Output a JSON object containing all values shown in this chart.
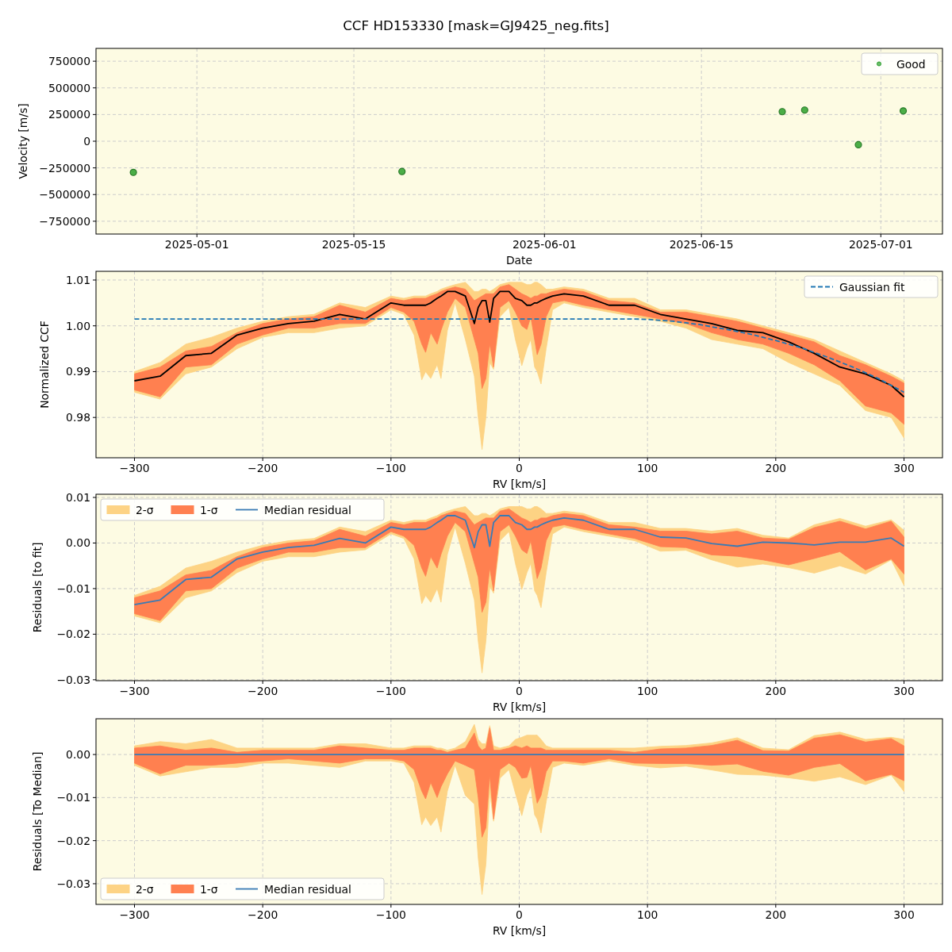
{
  "chart_data": [
    {
      "type": "scatter",
      "title": "CCF HD153330 [mask=GJ9425_neg.fits]",
      "xlabel": "Date",
      "ylabel": "Velocity [m/s]",
      "x": [
        "2025-04-25T08:00",
        "2025-05-19T07:00",
        "2025-06-22T05:00",
        "2025-06-24T05:00",
        "2025-06-29",
        "2025-07-03"
      ],
      "series": [
        {
          "name": "Good",
          "color": "#2ca02c",
          "values": [
            -292000,
            -284000,
            277000,
            292000,
            -33000,
            284000
          ]
        }
      ],
      "xlim": [
        "2025-04-22",
        "2025-07-06T12:00"
      ],
      "xticks": [
        "2025-05-01",
        "2025-05-15",
        "2025-06-01",
        "2025-06-15",
        "2025-07-01"
      ],
      "ylim": [
        -870000,
        870000
      ],
      "yticks": [
        {
          "value": -750000,
          "label": "−750000"
        },
        {
          "value": -500000,
          "label": "−500000"
        },
        {
          "value": -250000,
          "label": "−250000"
        },
        0,
        250000,
        500000,
        750000
      ],
      "grid": true,
      "legend": "top right",
      "marker": "circle"
    },
    {
      "type": "line",
      "xlabel": "RV [km/s]",
      "ylabel": "Normalized CCF",
      "x": [
        -300,
        -280,
        -260,
        -240,
        -220,
        -200,
        -180,
        -160,
        -140,
        -120,
        -100,
        -90,
        -82,
        -76,
        -73,
        -69,
        -64,
        -61,
        -56,
        -50,
        -42,
        -35,
        -32,
        -29,
        -26,
        -23,
        -20,
        -15,
        -8,
        -3,
        2,
        6,
        9,
        12,
        14,
        17,
        21,
        26,
        35,
        50,
        70,
        90,
        110,
        130,
        150,
        170,
        190,
        210,
        230,
        250,
        270,
        290,
        300
      ],
      "series": [
        {
          "color": "#fdd384",
          "values": [
            null,
            null,
            null,
            null,
            null,
            null,
            null,
            null,
            null,
            null,
            null,
            null,
            null,
            null,
            null,
            null,
            null,
            null,
            null,
            null,
            null,
            null,
            null,
            null,
            null,
            null,
            null,
            null,
            null,
            null,
            null,
            null,
            null,
            null,
            null,
            null,
            null,
            null,
            null,
            null,
            null,
            null,
            null,
            null,
            null,
            null,
            null,
            null,
            null,
            null,
            null,
            null,
            null
          ],
          "lower": [
            0.9855,
            0.984,
            0.9895,
            0.991,
            0.995,
            0.9975,
            0.9985,
            0.9985,
            0.9995,
            1.0,
            1.0035,
            1.0025,
            0.998,
            0.9882,
            0.99,
            0.9885,
            0.9915,
            0.9885,
            0.999,
            1.005,
            0.997,
            0.989,
            0.98,
            0.973,
            0.98,
            0.992,
            0.9905,
            1.002,
            1.004,
            0.997,
            0.9913,
            0.995,
            0.997,
            0.991,
            0.99,
            0.9873,
            0.995,
            1.0035,
            1.005,
            1.004,
            1.003,
            1.002,
            1.001,
            0.9995,
            0.997,
            0.996,
            0.995,
            0.992,
            0.9895,
            0.987,
            0.9815,
            0.98,
            0.9755
          ],
          "upper": [
            0.99,
            0.992,
            0.996,
            0.9975,
            0.9995,
            1.001,
            1.002,
            1.0025,
            1.005,
            1.004,
            1.0065,
            1.006,
            1.0065,
            1.0065,
            1.0065,
            1.007,
            1.0075,
            1.008,
            1.0085,
            1.009,
            1.0095,
            1.0075,
            1.0075,
            1.008,
            1.008,
            1.0075,
            1.008,
            1.009,
            1.0095,
            1.0095,
            1.0095,
            1.009,
            1.009,
            1.0095,
            1.0095,
            1.009,
            1.008,
            1.008,
            1.0085,
            1.008,
            1.006,
            1.006,
            1.0035,
            1.0035,
            1.0025,
            1.0015,
            1.0,
            0.9985,
            0.997,
            0.9945,
            0.992,
            0.9895,
            0.988
          ]
        },
        {
          "color": "#ff8050",
          "values": [
            null,
            null,
            null,
            null,
            null,
            null,
            null,
            null,
            null,
            null,
            null,
            null,
            null,
            null,
            null,
            null,
            null,
            null,
            null,
            null,
            null,
            null,
            null,
            null,
            null,
            null,
            null,
            null,
            null,
            null,
            null,
            null,
            null,
            null,
            null,
            null,
            null,
            null,
            null,
            null,
            null,
            null,
            null,
            null,
            null,
            null,
            null,
            null,
            null,
            null,
            null,
            null,
            null
          ],
          "lower": [
            0.986,
            0.9845,
            0.991,
            0.9915,
            0.996,
            0.998,
            0.9995,
            0.9995,
            1.0005,
            1.0005,
            1.004,
            1.003,
            1.001,
            0.996,
            0.9942,
            0.9985,
            0.996,
            0.999,
            1.003,
            1.006,
            1.004,
            0.997,
            0.994,
            0.9863,
            0.9885,
            0.996,
            0.991,
            1.004,
            1.0055,
            1.003,
            1.0,
            0.9992,
            1.002,
            0.997,
            0.9937,
            0.996,
            1.002,
            1.005,
            1.0055,
            1.0045,
            1.0035,
            1.0025,
            1.0015,
            1.0005,
            0.9985,
            0.997,
            0.996,
            0.994,
            0.9915,
            0.988,
            0.9825,
            0.981,
            0.9785
          ],
          "upper": [
            0.9895,
            0.991,
            0.9945,
            0.9955,
            0.9985,
            1.0005,
            1.0015,
            1.002,
            1.0045,
            1.003,
            1.006,
            1.0055,
            1.006,
            1.006,
            1.006,
            1.0065,
            1.007,
            1.0075,
            1.008,
            1.0085,
            1.008,
            1.0055,
            1.006,
            1.0065,
            1.007,
            1.007,
            1.007,
            1.0085,
            1.009,
            1.008,
            1.007,
            1.0065,
            1.006,
            1.0065,
            1.0065,
            1.007,
            1.007,
            1.0075,
            1.008,
            1.0075,
            1.0055,
            1.005,
            1.003,
            1.003,
            1.002,
            1.001,
            0.9995,
            0.998,
            0.9965,
            0.9935,
            0.9915,
            0.989,
            0.9875
          ]
        },
        {
          "type": "line",
          "color": "#000000",
          "values": [
            0.988,
            0.989,
            0.9935,
            0.994,
            0.998,
            0.9995,
            1.0005,
            1.001,
            1.0025,
            1.0015,
            1.005,
            1.0045,
            1.0045,
            1.0045,
            1.0045,
            1.005,
            1.006,
            1.0065,
            1.0075,
            1.0075,
            1.0065,
            1.0005,
            1.004,
            1.0055,
            1.0055,
            1.0008,
            1.006,
            1.0075,
            1.0075,
            1.006,
            1.0055,
            1.0045,
            1.0045,
            1.005,
            1.005,
            1.0055,
            1.006,
            1.0065,
            1.007,
            1.0065,
            1.0045,
            1.0045,
            1.0025,
            1.0015,
            1.0005,
            0.999,
            0.9985,
            0.9965,
            0.994,
            0.991,
            0.9895,
            0.987,
            0.9845
          ]
        },
        {
          "name": "Gaussian fit",
          "type": "line",
          "color": "#1f77b4",
          "line_style": "dashed",
          "x": [
            -300,
            -200,
            -100,
            0,
            90,
            100,
            120,
            140,
            160,
            180,
            200,
            220,
            240,
            260,
            280,
            300
          ],
          "values": [
            1.0015,
            1.0015,
            1.0015,
            1.0015,
            1.0015,
            1.0014,
            1.001,
            1.0003,
            0.9993,
            0.9982,
            0.9968,
            0.9952,
            0.9932,
            0.991,
            0.9885,
            0.9855
          ]
        }
      ],
      "xlim": [
        -330,
        330
      ],
      "xticks": [
        {
          "value": -300,
          "label": "−300"
        },
        {
          "value": -200,
          "label": "−200"
        },
        {
          "value": -100,
          "label": "−100"
        },
        0,
        100,
        200,
        300
      ],
      "ylim": [
        0.9712,
        1.0119
      ],
      "yticks": [
        0.98,
        0.99,
        {
          "value": 1.0,
          "label": "1.00"
        },
        1.01
      ],
      "grid": true,
      "legend": "top right"
    },
    {
      "type": "line",
      "xlabel": "RV [km/s]",
      "ylabel": "Residuals [to fit]",
      "x": [
        -300,
        -280,
        -260,
        -240,
        -220,
        -200,
        -180,
        -160,
        -140,
        -120,
        -100,
        -90,
        -82,
        -76,
        -73,
        -69,
        -64,
        -61,
        -56,
        -50,
        -42,
        -35,
        -32,
        -29,
        -26,
        -23,
        -20,
        -15,
        -8,
        -3,
        2,
        6,
        9,
        12,
        14,
        17,
        21,
        26,
        35,
        50,
        70,
        90,
        110,
        130,
        150,
        170,
        190,
        210,
        230,
        250,
        270,
        290,
        300
      ],
      "series": [
        {
          "name": "2-σ",
          "color": "#fdd384",
          "values": [
            null,
            null,
            null,
            null,
            null,
            null,
            null,
            null,
            null,
            null,
            null,
            null,
            null,
            null,
            null,
            null,
            null,
            null,
            null,
            null,
            null,
            null,
            null,
            null,
            null,
            null,
            null,
            null,
            null,
            null,
            null,
            null,
            null,
            null,
            null,
            null,
            null,
            null,
            null,
            null,
            null,
            null,
            null,
            null,
            null,
            null,
            null,
            null,
            null,
            null,
            null,
            null,
            null
          ],
          "lower": [
            -0.016,
            -0.0175,
            -0.012,
            -0.0105,
            -0.0065,
            -0.004,
            -0.003,
            -0.003,
            -0.002,
            -0.0015,
            0.002,
            0.001,
            -0.0035,
            -0.0133,
            -0.0115,
            -0.013,
            -0.01,
            -0.013,
            -0.0025,
            0.0035,
            -0.0045,
            -0.0125,
            -0.0215,
            -0.0285,
            -0.0215,
            -0.0095,
            -0.011,
            0.0005,
            0.0025,
            -0.0045,
            -0.0102,
            -0.0065,
            -0.0045,
            -0.0105,
            -0.0115,
            -0.0142,
            -0.0065,
            0.002,
            0.0035,
            0.0025,
            0.0015,
            0.0005,
            -0.0018,
            -0.0016,
            -0.0037,
            -0.0053,
            -0.0046,
            -0.0054,
            -0.0066,
            -0.005,
            -0.0068,
            -0.0037,
            -0.0093
          ],
          "upper": [
            -0.0115,
            -0.0095,
            -0.0055,
            -0.004,
            -0.002,
            -0.0005,
            0.0005,
            0.001,
            0.0035,
            0.0025,
            0.005,
            0.0045,
            0.005,
            0.005,
            0.005,
            0.0055,
            0.006,
            0.0065,
            0.007,
            0.0075,
            0.008,
            0.006,
            0.006,
            0.0065,
            0.0065,
            0.006,
            0.0065,
            0.0075,
            0.008,
            0.008,
            0.008,
            0.0075,
            0.0075,
            0.008,
            0.008,
            0.0075,
            0.0065,
            0.0065,
            0.007,
            0.0065,
            0.0045,
            0.0045,
            0.0032,
            0.0032,
            0.0026,
            0.0032,
            0.0017,
            0.0011,
            0.004,
            0.0054,
            0.0037,
            0.0051,
            0.0028
          ]
        },
        {
          "name": "1-σ",
          "color": "#ff8050",
          "values": [
            null,
            null,
            null,
            null,
            null,
            null,
            null,
            null,
            null,
            null,
            null,
            null,
            null,
            null,
            null,
            null,
            null,
            null,
            null,
            null,
            null,
            null,
            null,
            null,
            null,
            null,
            null,
            null,
            null,
            null,
            null,
            null,
            null,
            null,
            null,
            null,
            null,
            null,
            null,
            null,
            null,
            null,
            null,
            null,
            null,
            null,
            null,
            null,
            null,
            null,
            null,
            null,
            null
          ],
          "lower": [
            -0.0155,
            -0.017,
            -0.0105,
            -0.01,
            -0.0055,
            -0.0035,
            -0.002,
            -0.002,
            -0.001,
            -0.001,
            0.0025,
            0.0015,
            -0.0005,
            -0.0055,
            -0.0073,
            -0.003,
            -0.0055,
            -0.0025,
            0.0015,
            0.0045,
            0.0025,
            -0.0045,
            -0.0075,
            -0.0152,
            -0.013,
            -0.0055,
            -0.0105,
            0.0025,
            0.004,
            0.0015,
            -0.0015,
            -0.0023,
            0.0005,
            -0.0045,
            -0.0078,
            -0.0055,
            0.0005,
            0.0035,
            0.004,
            0.003,
            0.002,
            0.001,
            -0.0008,
            -0.001,
            -0.0026,
            -0.0029,
            -0.0037,
            -0.0048,
            -0.0034,
            -0.0019,
            -0.0059,
            -0.0035,
            -0.0068
          ],
          "upper": [
            -0.012,
            -0.0105,
            -0.007,
            -0.006,
            -0.003,
            -0.001,
            0,
            0.0005,
            0.003,
            0.0015,
            0.0045,
            0.004,
            0.0045,
            0.0045,
            0.0045,
            0.005,
            0.0055,
            0.006,
            0.0065,
            0.007,
            0.0065,
            0.004,
            0.0045,
            0.005,
            0.0055,
            0.0055,
            0.0055,
            0.007,
            0.0075,
            0.0065,
            0.0055,
            0.005,
            0.0045,
            0.005,
            0.005,
            0.0055,
            0.0055,
            0.006,
            0.0065,
            0.006,
            0.004,
            0.0035,
            0.0026,
            0.0026,
            0.002,
            0.0026,
            0.0011,
            0.0008,
            0.0034,
            0.0048,
            0.0031,
            0.0048,
            0.0013
          ]
        },
        {
          "name": "Median residual",
          "type": "line",
          "color": "#3a7bb5",
          "values": [
            -0.0135,
            -0.0125,
            -0.008,
            -0.0075,
            -0.0035,
            -0.002,
            -0.001,
            -0.0005,
            0.001,
            0,
            0.0035,
            0.003,
            0.003,
            0.003,
            0.003,
            0.0035,
            0.0045,
            0.005,
            0.006,
            0.006,
            0.005,
            -0.001,
            0.0025,
            0.004,
            0.004,
            -0.0007,
            0.0045,
            0.006,
            0.006,
            0.0045,
            0.004,
            0.003,
            0.003,
            0.0035,
            0.0035,
            0.004,
            0.0045,
            0.005,
            0.0055,
            0.005,
            0.003,
            0.003,
            0.0013,
            0.0011,
            -0.0001,
            -0.0007,
            0.0002,
            0,
            -0.0004,
            0.0002,
            0.0002,
            0.0011,
            -0.0007
          ]
        }
      ],
      "xlim": [
        -330,
        330
      ],
      "xticks": [
        {
          "value": -300,
          "label": "−300"
        },
        {
          "value": -200,
          "label": "−200"
        },
        {
          "value": -100,
          "label": "−100"
        },
        0,
        100,
        200,
        300
      ],
      "ylim": [
        -0.0302,
        0.0107
      ],
      "yticks": [
        {
          "value": -0.03,
          "label": "−0.03"
        },
        {
          "value": -0.02,
          "label": "−0.02"
        },
        {
          "value": -0.01,
          "label": "−0.01"
        },
        {
          "value": 0,
          "label": "0.00"
        },
        0.01
      ],
      "grid": true,
      "legend": "top left"
    },
    {
      "type": "line",
      "xlabel": "RV [km/s]",
      "ylabel": "Residuals [To Median]",
      "x": [
        -300,
        -280,
        -260,
        -240,
        -220,
        -200,
        -180,
        -160,
        -140,
        -120,
        -100,
        -90,
        -82,
        -76,
        -73,
        -69,
        -64,
        -61,
        -56,
        -50,
        -42,
        -35,
        -32,
        -29,
        -26,
        -23,
        -20,
        -15,
        -8,
        -3,
        2,
        6,
        9,
        12,
        14,
        17,
        21,
        26,
        35,
        50,
        70,
        90,
        110,
        130,
        150,
        170,
        190,
        210,
        230,
        250,
        270,
        290,
        300
      ],
      "series": [
        {
          "name": "2-σ",
          "color": "#fdd384",
          "values": [
            null,
            null,
            null,
            null,
            null,
            null,
            null,
            null,
            null,
            null,
            null,
            null,
            null,
            null,
            null,
            null,
            null,
            null,
            null,
            null,
            null,
            null,
            null,
            null,
            null,
            null,
            null,
            null,
            null,
            null,
            null,
            null,
            null,
            null,
            null,
            null,
            null,
            null,
            null,
            null,
            null,
            null,
            null,
            null,
            null,
            null,
            null,
            null,
            null,
            null,
            null,
            null,
            null
          ],
          "lower": [
            -0.0025,
            -0.005,
            -0.004,
            -0.003,
            -0.003,
            -0.002,
            -0.002,
            -0.0025,
            -0.003,
            -0.0015,
            -0.0015,
            -0.002,
            -0.0065,
            -0.0163,
            -0.0145,
            -0.0165,
            -0.0145,
            -0.018,
            -0.0085,
            -0.0025,
            -0.0095,
            -0.0115,
            -0.024,
            -0.0325,
            -0.0255,
            -0.0088,
            -0.0155,
            -0.0055,
            -0.0035,
            -0.009,
            -0.0142,
            -0.0095,
            -0.0075,
            -0.014,
            -0.015,
            -0.0182,
            -0.011,
            -0.003,
            -0.002,
            -0.0025,
            -0.0015,
            -0.0025,
            -0.0031,
            -0.0027,
            -0.0036,
            -0.0046,
            -0.0048,
            -0.0054,
            -0.0062,
            -0.0052,
            -0.007,
            -0.0048,
            -0.0086
          ],
          "upper": [
            0.002,
            0.003,
            0.0025,
            0.0035,
            0.0015,
            0.0015,
            0.0015,
            0.0015,
            0.0025,
            0.0025,
            0.0015,
            0.0015,
            0.002,
            0.002,
            0.002,
            0.002,
            0.0015,
            0.0015,
            0.001,
            0.0015,
            0.003,
            0.007,
            0.0035,
            0.0025,
            0.0025,
            0.0067,
            0.002,
            0.0015,
            0.002,
            0.0035,
            0.004,
            0.0045,
            0.0045,
            0.0045,
            0.0045,
            0.0035,
            0.002,
            0.0015,
            0.0015,
            0.0015,
            0.0015,
            0.0015,
            0.0019,
            0.0021,
            0.0027,
            0.0039,
            0.0015,
            0.0011,
            0.0044,
            0.0052,
            0.0035,
            0.004,
            0.0035
          ]
        },
        {
          "name": "1-σ",
          "color": "#ff8050",
          "values": [
            null,
            null,
            null,
            null,
            null,
            null,
            null,
            null,
            null,
            null,
            null,
            null,
            null,
            null,
            null,
            null,
            null,
            null,
            null,
            null,
            null,
            null,
            null,
            null,
            null,
            null,
            null,
            null,
            null,
            null,
            null,
            null,
            null,
            null,
            null,
            null,
            null,
            null,
            null,
            null,
            null,
            null,
            null,
            null,
            null,
            null,
            null,
            null,
            null,
            null,
            null,
            null,
            null
          ],
          "lower": [
            -0.002,
            -0.0045,
            -0.0025,
            -0.0025,
            -0.002,
            -0.0015,
            -0.001,
            -0.0015,
            -0.002,
            -0.001,
            -0.001,
            -0.0015,
            -0.0035,
            -0.0085,
            -0.0103,
            -0.0065,
            -0.01,
            -0.0075,
            -0.0045,
            -0.0015,
            -0.0025,
            -0.0035,
            -0.01,
            -0.0192,
            -0.017,
            -0.0048,
            -0.015,
            -0.0035,
            -0.002,
            -0.003,
            -0.0055,
            -0.0053,
            -0.0025,
            -0.008,
            -0.0113,
            -0.0095,
            -0.004,
            -0.0015,
            -0.0015,
            -0.002,
            -0.001,
            -0.002,
            -0.0021,
            -0.0021,
            -0.0025,
            -0.0022,
            -0.0039,
            -0.0048,
            -0.003,
            -0.0021,
            -0.0061,
            -0.0046,
            -0.0061
          ],
          "upper": [
            0.0015,
            0.002,
            0.001,
            0.0015,
            0.0005,
            0.001,
            0.001,
            0.001,
            0.002,
            0.0015,
            0.001,
            0.001,
            0.0015,
            0.0015,
            0.0015,
            0.0015,
            0.001,
            0.001,
            0.0005,
            0.001,
            0.0015,
            0.005,
            0.002,
            0.001,
            0.0015,
            0.0062,
            0.001,
            0.001,
            0.0015,
            0.002,
            0.0015,
            0.002,
            0.0015,
            0.0015,
            0.0015,
            0.0015,
            0.001,
            0.001,
            0.001,
            0.001,
            0.001,
            0.0005,
            0.0013,
            0.0015,
            0.0021,
            0.0033,
            0.0009,
            0.0008,
            0.0038,
            0.0046,
            0.0029,
            0.0037,
            0.002
          ]
        },
        {
          "name": "Median residual",
          "type": "line",
          "color": "#3a7bb5",
          "values": [
            0,
            0,
            0,
            0,
            0,
            0,
            0,
            0,
            0,
            0,
            0,
            0,
            0,
            0,
            0,
            0,
            0,
            0,
            0,
            0,
            0,
            0,
            0,
            0,
            0,
            0,
            0,
            0,
            0,
            0,
            0,
            0,
            0,
            0,
            0,
            0,
            0,
            0,
            0,
            0,
            0,
            0,
            0,
            0,
            0,
            0,
            0,
            0,
            0,
            0,
            0,
            0,
            0
          ]
        }
      ],
      "xlim": [
        -330,
        330
      ],
      "xticks": [
        {
          "value": -300,
          "label": "−300"
        },
        {
          "value": -200,
          "label": "−200"
        },
        {
          "value": -100,
          "label": "−100"
        },
        0,
        100,
        200,
        300
      ],
      "ylim": [
        -0.0348,
        0.0083
      ],
      "yticks": [
        {
          "value": -0.03,
          "label": "−0.03"
        },
        {
          "value": -0.02,
          "label": "−0.02"
        },
        {
          "value": -0.01,
          "label": "−0.01"
        },
        {
          "value": 0,
          "label": "0.00"
        }
      ],
      "grid": true,
      "legend": "bottom left"
    }
  ]
}
